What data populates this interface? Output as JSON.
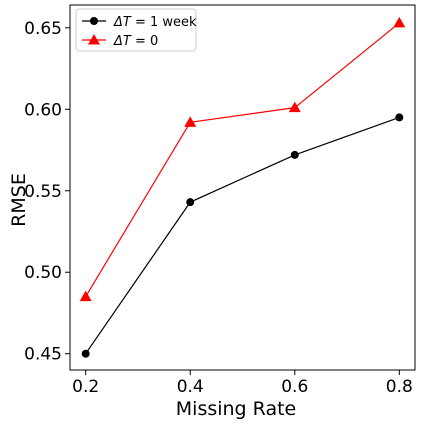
{
  "chart_data": {
    "type": "line",
    "title": "",
    "xlabel": "Missing Rate",
    "ylabel": "RMSE",
    "x": [
      0.2,
      0.4,
      0.6,
      0.8
    ],
    "x_ticks": [
      "0.2",
      "0.4",
      "0.6",
      "0.8"
    ],
    "y_ticks": [
      "0.45",
      "0.50",
      "0.55",
      "0.60",
      "0.65"
    ],
    "xlim": [
      0.17,
      0.83
    ],
    "ylim": [
      0.44,
      0.664
    ],
    "grid": false,
    "legend_position": "top-left",
    "series": [
      {
        "name_prefix": "ΔT",
        "name_suffix": " = 1 week",
        "values": [
          0.45,
          0.543,
          0.572,
          0.595
        ],
        "color": "#000000",
        "marker": "circle"
      },
      {
        "name_prefix": "ΔT",
        "name_suffix": " = 0",
        "values": [
          0.485,
          0.592,
          0.601,
          0.653
        ],
        "color": "#ff0000",
        "marker": "triangle"
      }
    ]
  }
}
